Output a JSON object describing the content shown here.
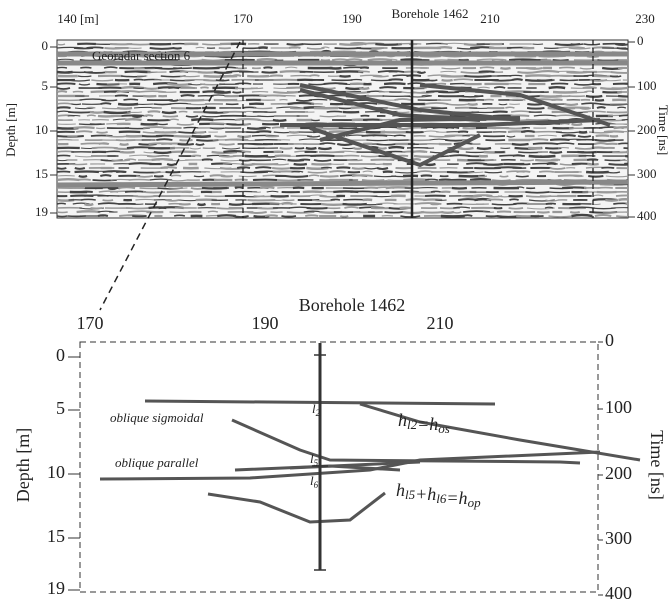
{
  "top_panel": {
    "title": "Georadar section 6",
    "x_labels": [
      "140 [m]",
      "170",
      "190",
      "210",
      "230"
    ],
    "borehole": "Borehole 1462",
    "depth_label": "Depth [m]",
    "depth_ticks": [
      "0",
      "5",
      "10",
      "15",
      "19"
    ],
    "time_label": "Time [ns]",
    "time_ticks": [
      "0",
      "100",
      "200",
      "300",
      "400"
    ]
  },
  "bottom_panel": {
    "x_labels": [
      "170",
      "190",
      "210"
    ],
    "borehole": "Borehole 1462",
    "depth_label": "Depth [m]",
    "depth_ticks": [
      "0",
      "5",
      "10",
      "15",
      "19"
    ],
    "time_label": "Time [ns]",
    "time_ticks": [
      "0",
      "100",
      "200",
      "300",
      "400"
    ],
    "annotations": [
      "oblique sigmoidal",
      "oblique parallel"
    ],
    "layers": [
      {
        "base": "l",
        "sub": "2"
      },
      {
        "base": "l",
        "sub": "5"
      },
      {
        "base": "l",
        "sub": "6"
      }
    ],
    "formulas": [
      [
        {
          "base": "h",
          "sub": "l2"
        },
        {
          "base": "=h",
          "sub": "os"
        }
      ],
      [
        {
          "base": "h",
          "sub": "l5"
        },
        {
          "base": "+h",
          "sub": "l6"
        },
        {
          "base": "=h",
          "sub": "op"
        }
      ]
    ]
  }
}
